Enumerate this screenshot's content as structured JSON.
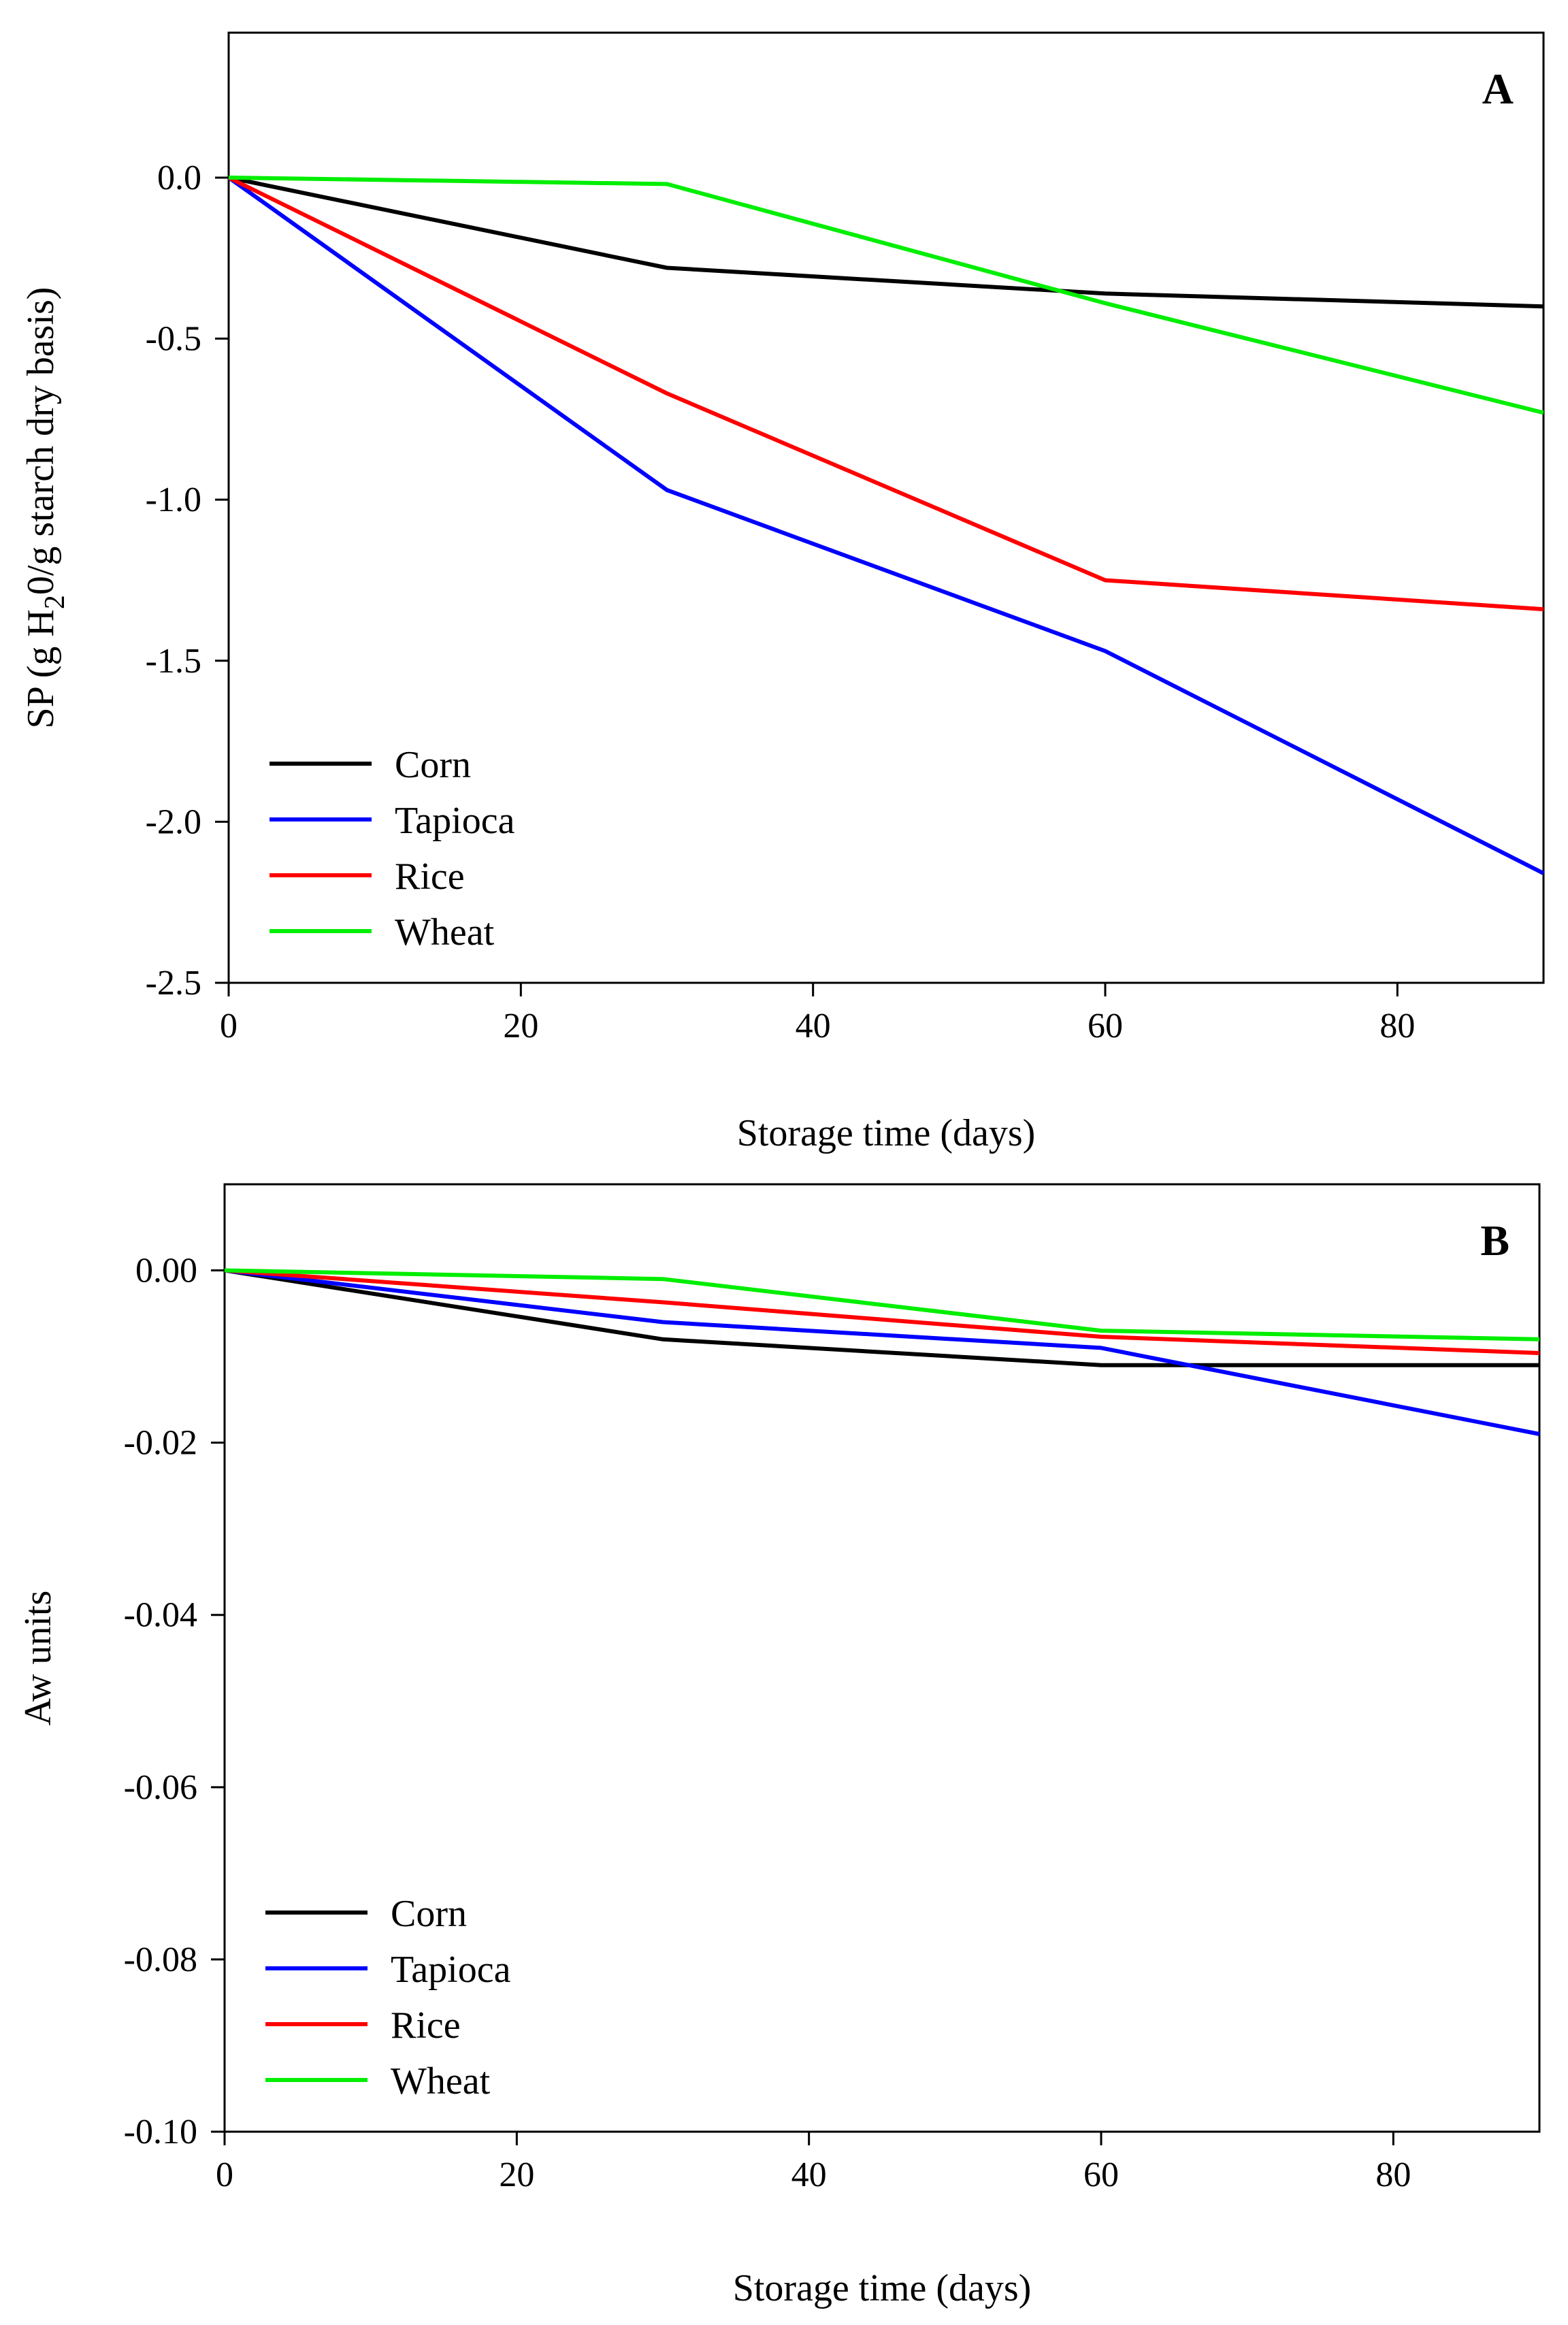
{
  "chart_data": [
    {
      "panel": "A",
      "type": "line",
      "xlabel": "Storage time (days)",
      "ylabel": {
        "main": "SP (g H",
        "sub": "2",
        "rest": "0/g starch dry basis)"
      },
      "xlim": [
        0,
        90
      ],
      "ylim": [
        -2.5,
        0.45
      ],
      "x_ticks": [
        0,
        20,
        40,
        60,
        80
      ],
      "x_tick_labels": [
        "0",
        "20",
        "40",
        "60",
        "80"
      ],
      "y_ticks": [
        0.0,
        -0.5,
        -1.0,
        -1.5,
        -2.0,
        -2.5
      ],
      "y_tick_labels": [
        "0.0",
        "-0.5",
        "-1.0",
        "-1.5",
        "-2.0",
        "-2.5"
      ],
      "legend_position": "bottom-left",
      "x": [
        0,
        30,
        60,
        90
      ],
      "series": [
        {
          "name": "Corn",
          "color": "#000000",
          "values": [
            0,
            -0.28,
            -0.36,
            -0.4
          ]
        },
        {
          "name": "Tapioca",
          "color": "#0000ff",
          "values": [
            0,
            -0.97,
            -1.47,
            -2.16
          ]
        },
        {
          "name": "Rice",
          "color": "#ff0000",
          "values": [
            0,
            -0.67,
            -1.25,
            -1.34
          ]
        },
        {
          "name": "Wheat",
          "color": "#00ee00",
          "values": [
            0,
            -0.02,
            -0.39,
            -0.73
          ]
        }
      ]
    },
    {
      "panel": "B",
      "type": "line",
      "xlabel": "Storage time (days)",
      "ylabel": {
        "main": "Aw units",
        "sub": "",
        "rest": ""
      },
      "xlim": [
        0,
        90
      ],
      "ylim": [
        -0.1,
        0.01
      ],
      "x_ticks": [
        0,
        20,
        40,
        60,
        80
      ],
      "x_tick_labels": [
        "0",
        "20",
        "40",
        "60",
        "80"
      ],
      "y_ticks": [
        0.0,
        -0.02,
        -0.04,
        -0.06,
        -0.08,
        -0.1
      ],
      "y_tick_labels": [
        "0.00",
        "-0.02",
        "-0.04",
        "-0.06",
        "-0.08",
        "-0.10"
      ],
      "legend_position": "bottom-left",
      "x": [
        0,
        30,
        60,
        90
      ],
      "series": [
        {
          "name": "Corn",
          "color": "#000000",
          "values": [
            0,
            -0.008,
            -0.011,
            -0.011
          ]
        },
        {
          "name": "Tapioca",
          "color": "#0000ff",
          "values": [
            0,
            -0.006,
            -0.009,
            -0.019
          ]
        },
        {
          "name": "Rice",
          "color": "#ff0000",
          "values": [
            0,
            -0.0037,
            -0.0077,
            -0.0096
          ]
        },
        {
          "name": "Wheat",
          "color": "#00ee00",
          "values": [
            0,
            -0.001,
            -0.007,
            -0.008
          ]
        }
      ]
    }
  ]
}
